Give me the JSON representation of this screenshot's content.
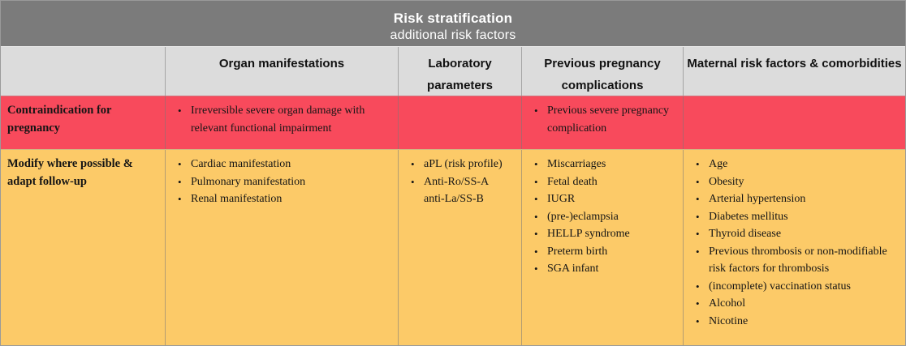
{
  "title": {
    "line1": "Risk stratification",
    "line2": "additional risk factors"
  },
  "header": {
    "columns": [
      {
        "label": ""
      },
      {
        "label": "Organ manifestations"
      },
      {
        "label": "Laboratory parameters"
      },
      {
        "label": "Previous pregnancy complications"
      },
      {
        "label": "Maternal risk factors & comorbidities"
      }
    ]
  },
  "rows": [
    {
      "label": "Contraindication for pregnancy",
      "organ_manifestations": [
        "Irreversible severe organ damage with relevant functional impairment"
      ],
      "laboratory_parameters": [],
      "previous_pregnancy_complications": [
        "Previous severe pregnancy complication"
      ],
      "maternal_risk_factors": []
    },
    {
      "label": "Modify where possible & adapt follow-up",
      "organ_manifestations": [
        "Cardiac manifestation",
        "Pulmonary manifestation",
        "Renal manifestation"
      ],
      "laboratory_parameters": [
        "aPL (risk profile)",
        "Anti-Ro/SS-A\nanti-La/SS-B"
      ],
      "previous_pregnancy_complications": [
        "Miscarriages",
        "Fetal death",
        "IUGR",
        "(pre-)eclampsia",
        "HELLP syndrome",
        "Preterm birth",
        "SGA infant"
      ],
      "maternal_risk_factors": [
        "Age",
        "Obesity",
        "Arterial hypertension",
        "Diabetes mellitus",
        "Thyroid disease",
        "Previous thrombosis or non-modifiable risk factors for thrombosis",
        "(incomplete) vaccination status",
        "Alcohol",
        "Nicotine"
      ]
    }
  ],
  "colors": {
    "title_bar_bg": "#7b7b7b",
    "header_bg": "#dcdcdc",
    "contraindication_bg": "#f84a5c",
    "modify_bg": "#fcca68",
    "title_text": "#ffffff",
    "body_text": "#151515"
  }
}
